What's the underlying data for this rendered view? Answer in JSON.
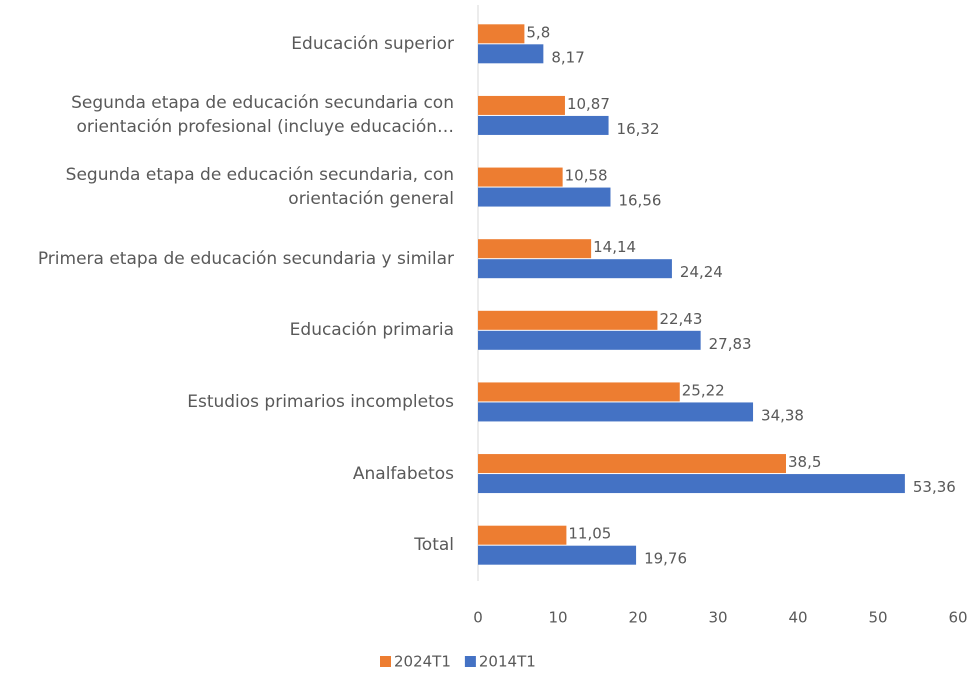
{
  "chart_data": {
    "type": "bar",
    "orientation": "horizontal",
    "categories": [
      "Educación superior",
      "Segunda etapa de educación secundaria con orientación profesional (incluye educación…",
      "Segunda etapa de educación secundaria, con orientación general",
      "Primera etapa de educación secundaria y similar",
      "Educación primaria",
      "Estudios primarios incompletos",
      "Analfabetos",
      "Total"
    ],
    "series": [
      {
        "name": "2024T1",
        "color": "#ed7d31",
        "values": [
          5.8,
          10.87,
          10.58,
          14.14,
          22.43,
          25.22,
          38.5,
          11.05
        ],
        "value_labels": [
          "5,8",
          "10,87",
          "10,58",
          "14,14",
          "22,43",
          "25,22",
          "38,5",
          "11,05"
        ]
      },
      {
        "name": "2014T1",
        "color": "#4472c4",
        "values": [
          8.17,
          16.32,
          16.56,
          24.24,
          27.83,
          34.38,
          53.36,
          19.76
        ],
        "value_labels": [
          "8,17",
          "16,32",
          "16,56",
          "24,24",
          "27,83",
          "34,38",
          "53,36",
          "19,76"
        ]
      }
    ],
    "xlim": [
      0,
      60
    ],
    "xticks": [
      0,
      10,
      20,
      30,
      40,
      50,
      60
    ],
    "legend": "bottom"
  }
}
